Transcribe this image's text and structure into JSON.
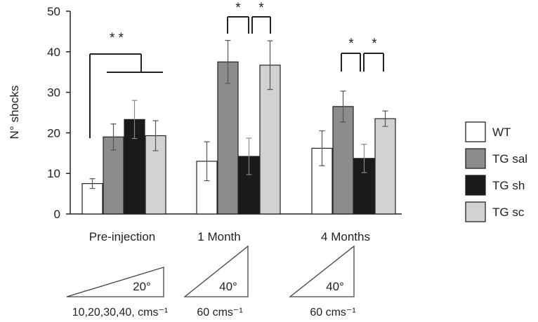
{
  "chart_data": {
    "type": "bar",
    "ylabel": "N° shocks",
    "ylim": [
      0,
      50
    ],
    "yticks": [
      0,
      10,
      20,
      30,
      40,
      50
    ],
    "grid": false,
    "legend_position": "right",
    "categories": [
      "Pre-injection",
      "1 Month",
      "4 Months"
    ],
    "series": [
      {
        "name": "WT",
        "color": "#ffffff",
        "values": [
          7.5,
          13,
          16.2
        ],
        "errors": [
          1.2,
          4.8,
          4.3
        ]
      },
      {
        "name": "TG sal",
        "color": "#8c8c8c",
        "values": [
          19,
          37.5,
          26.5
        ],
        "errors": [
          3.2,
          5.3,
          3.8
        ]
      },
      {
        "name": "TG sh",
        "color": "#1a1a1a",
        "values": [
          23.3,
          14.2,
          13.7
        ],
        "errors": [
          4.7,
          4.5,
          3.5
        ]
      },
      {
        "name": "TG sc",
        "color": "#d2d2d2",
        "values": [
          19.3,
          36.7,
          23.5
        ],
        "errors": [
          3.7,
          6.0,
          1.9
        ]
      }
    ],
    "significance": [
      {
        "group": "Pre-injection",
        "label": "* *"
      },
      {
        "group": "1 Month",
        "label": "*"
      },
      {
        "group": "1 Month",
        "label": "*"
      },
      {
        "group": "4 Months",
        "label": "*"
      },
      {
        "group": "4 Months",
        "label": "*"
      }
    ],
    "conditions": [
      {
        "group": "Pre-injection",
        "angle": "20°",
        "speed": "10,20,30,40, cms⁻¹"
      },
      {
        "group": "1 Month",
        "angle": "40°",
        "speed": "60 cms⁻¹"
      },
      {
        "group": "4 Months",
        "angle": "40°",
        "speed": "60 cms⁻¹"
      }
    ]
  }
}
